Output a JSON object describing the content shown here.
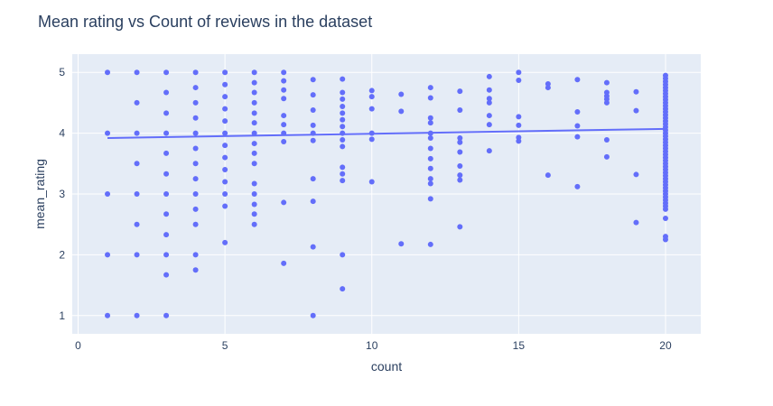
{
  "chart_data": {
    "type": "scatter",
    "title": "Mean rating vs Count of reviews in the dataset",
    "xlabel": "count",
    "ylabel": "mean_rating",
    "xlim": [
      -0.2,
      21.2
    ],
    "ylim": [
      0.7,
      5.3
    ],
    "xticks": [
      0,
      5,
      10,
      15,
      20
    ],
    "yticks": [
      1,
      2,
      3,
      4,
      5
    ],
    "grid": true,
    "colors": {
      "marker": "#636efa",
      "plot_bg": "#e5ecf6",
      "grid": "#ffffff",
      "text": "#2a3f5f"
    },
    "series": [
      {
        "mode": "markers",
        "points": [
          [
            1,
            1
          ],
          [
            1,
            2
          ],
          [
            1,
            3
          ],
          [
            1,
            4
          ],
          [
            1,
            5
          ],
          [
            2,
            1
          ],
          [
            2,
            2
          ],
          [
            2,
            2.5
          ],
          [
            2,
            3
          ],
          [
            2,
            3.5
          ],
          [
            2,
            4
          ],
          [
            2,
            4.5
          ],
          [
            2,
            5
          ],
          [
            3,
            1
          ],
          [
            3,
            1.67
          ],
          [
            3,
            2
          ],
          [
            3,
            2.33
          ],
          [
            3,
            2.67
          ],
          [
            3,
            3
          ],
          [
            3,
            3.33
          ],
          [
            3,
            3.67
          ],
          [
            3,
            4
          ],
          [
            3,
            4.33
          ],
          [
            3,
            4.67
          ],
          [
            3,
            5
          ],
          [
            4,
            1.75
          ],
          [
            4,
            2
          ],
          [
            4,
            2.5
          ],
          [
            4,
            2.75
          ],
          [
            4,
            3
          ],
          [
            4,
            3.25
          ],
          [
            4,
            3.5
          ],
          [
            4,
            3.75
          ],
          [
            4,
            4
          ],
          [
            4,
            4.25
          ],
          [
            4,
            4.5
          ],
          [
            4,
            4.75
          ],
          [
            4,
            5
          ],
          [
            5,
            2.2
          ],
          [
            5,
            2.8
          ],
          [
            5,
            3
          ],
          [
            5,
            3.2
          ],
          [
            5,
            3.4
          ],
          [
            5,
            3.6
          ],
          [
            5,
            3.8
          ],
          [
            5,
            4
          ],
          [
            5,
            4.2
          ],
          [
            5,
            4.4
          ],
          [
            5,
            4.6
          ],
          [
            5,
            4.8
          ],
          [
            5,
            5
          ],
          [
            6,
            2.5
          ],
          [
            6,
            2.67
          ],
          [
            6,
            2.83
          ],
          [
            6,
            3
          ],
          [
            6,
            3.17
          ],
          [
            6,
            3.5
          ],
          [
            6,
            3.67
          ],
          [
            6,
            3.83
          ],
          [
            6,
            4
          ],
          [
            6,
            4.17
          ],
          [
            6,
            4.33
          ],
          [
            6,
            4.5
          ],
          [
            6,
            4.67
          ],
          [
            6,
            4.83
          ],
          [
            6,
            5
          ],
          [
            7,
            1.86
          ],
          [
            7,
            2.86
          ],
          [
            7,
            3.86
          ],
          [
            7,
            4
          ],
          [
            7,
            4.14
          ],
          [
            7,
            4.29
          ],
          [
            7,
            4.57
          ],
          [
            7,
            4.71
          ],
          [
            7,
            4.86
          ],
          [
            7,
            5
          ],
          [
            8,
            1
          ],
          [
            8,
            2.13
          ],
          [
            8,
            2.88
          ],
          [
            8,
            3.25
          ],
          [
            8,
            3.88
          ],
          [
            8,
            4
          ],
          [
            8,
            4.13
          ],
          [
            8,
            4.38
          ],
          [
            8,
            4.63
          ],
          [
            8,
            4.88
          ],
          [
            9,
            1.44
          ],
          [
            9,
            2
          ],
          [
            9,
            3.22
          ],
          [
            9,
            3.33
          ],
          [
            9,
            3.44
          ],
          [
            9,
            3.78
          ],
          [
            9,
            3.89
          ],
          [
            9,
            4
          ],
          [
            9,
            4.11
          ],
          [
            9,
            4.22
          ],
          [
            9,
            4.33
          ],
          [
            9,
            4.44
          ],
          [
            9,
            4.56
          ],
          [
            9,
            4.67
          ],
          [
            9,
            4.89
          ],
          [
            10,
            3.2
          ],
          [
            10,
            3.9
          ],
          [
            10,
            4
          ],
          [
            10,
            4.4
          ],
          [
            10,
            4.6
          ],
          [
            10,
            4.7
          ],
          [
            11,
            2.18
          ],
          [
            11,
            4.36
          ],
          [
            11,
            4.64
          ],
          [
            12,
            2.17
          ],
          [
            12,
            2.92
          ],
          [
            12,
            3.17
          ],
          [
            12,
            3.25
          ],
          [
            12,
            3.42
          ],
          [
            12,
            3.58
          ],
          [
            12,
            3.75
          ],
          [
            12,
            3.92
          ],
          [
            12,
            4
          ],
          [
            12,
            4.17
          ],
          [
            12,
            4.25
          ],
          [
            12,
            4.58
          ],
          [
            12,
            4.75
          ],
          [
            13,
            2.46
          ],
          [
            13,
            3.23
          ],
          [
            13,
            3.31
          ],
          [
            13,
            3.46
          ],
          [
            13,
            3.69
          ],
          [
            13,
            3.85
          ],
          [
            13,
            3.92
          ],
          [
            13,
            4.38
          ],
          [
            13,
            4.69
          ],
          [
            14,
            3.71
          ],
          [
            14,
            4.14
          ],
          [
            14,
            4.29
          ],
          [
            14,
            4.5
          ],
          [
            14,
            4.57
          ],
          [
            14,
            4.71
          ],
          [
            14,
            4.93
          ],
          [
            15,
            3.87
          ],
          [
            15,
            3.93
          ],
          [
            15,
            4.13
          ],
          [
            15,
            4.27
          ],
          [
            15,
            4.87
          ],
          [
            15,
            5
          ],
          [
            16,
            3.31
          ],
          [
            16,
            4.75
          ],
          [
            16,
            4.81
          ],
          [
            17,
            3.12
          ],
          [
            17,
            3.94
          ],
          [
            17,
            4.12
          ],
          [
            17,
            4.35
          ],
          [
            17,
            4.88
          ],
          [
            18,
            3.61
          ],
          [
            18,
            3.89
          ],
          [
            18,
            4.5
          ],
          [
            18,
            4.56
          ],
          [
            18,
            4.61
          ],
          [
            18,
            4.67
          ],
          [
            18,
            4.83
          ],
          [
            19,
            2.53
          ],
          [
            19,
            3.32
          ],
          [
            19,
            4.37
          ],
          [
            19,
            4.68
          ],
          [
            20,
            2.25
          ],
          [
            20,
            2.3
          ],
          [
            20,
            2.6
          ],
          [
            20,
            2.75
          ],
          [
            20,
            2.8
          ],
          [
            20,
            2.85
          ],
          [
            20,
            2.9
          ],
          [
            20,
            2.95
          ],
          [
            20,
            3.0
          ],
          [
            20,
            3.05
          ],
          [
            20,
            3.1
          ],
          [
            20,
            3.15
          ],
          [
            20,
            3.2
          ],
          [
            20,
            3.25
          ],
          [
            20,
            3.3
          ],
          [
            20,
            3.35
          ],
          [
            20,
            3.4
          ],
          [
            20,
            3.45
          ],
          [
            20,
            3.5
          ],
          [
            20,
            3.55
          ],
          [
            20,
            3.6
          ],
          [
            20,
            3.65
          ],
          [
            20,
            3.7
          ],
          [
            20,
            3.75
          ],
          [
            20,
            3.8
          ],
          [
            20,
            3.85
          ],
          [
            20,
            3.9
          ],
          [
            20,
            3.95
          ],
          [
            20,
            4.0
          ],
          [
            20,
            4.05
          ],
          [
            20,
            4.1
          ],
          [
            20,
            4.15
          ],
          [
            20,
            4.2
          ],
          [
            20,
            4.25
          ],
          [
            20,
            4.3
          ],
          [
            20,
            4.35
          ],
          [
            20,
            4.4
          ],
          [
            20,
            4.45
          ],
          [
            20,
            4.5
          ],
          [
            20,
            4.55
          ],
          [
            20,
            4.6
          ],
          [
            20,
            4.65
          ],
          [
            20,
            4.7
          ],
          [
            20,
            4.75
          ],
          [
            20,
            4.8
          ],
          [
            20,
            4.85
          ],
          [
            20,
            4.9
          ],
          [
            20,
            4.95
          ]
        ]
      },
      {
        "mode": "trendline",
        "points": [
          [
            1,
            3.92
          ],
          [
            20,
            4.07
          ]
        ]
      }
    ]
  }
}
